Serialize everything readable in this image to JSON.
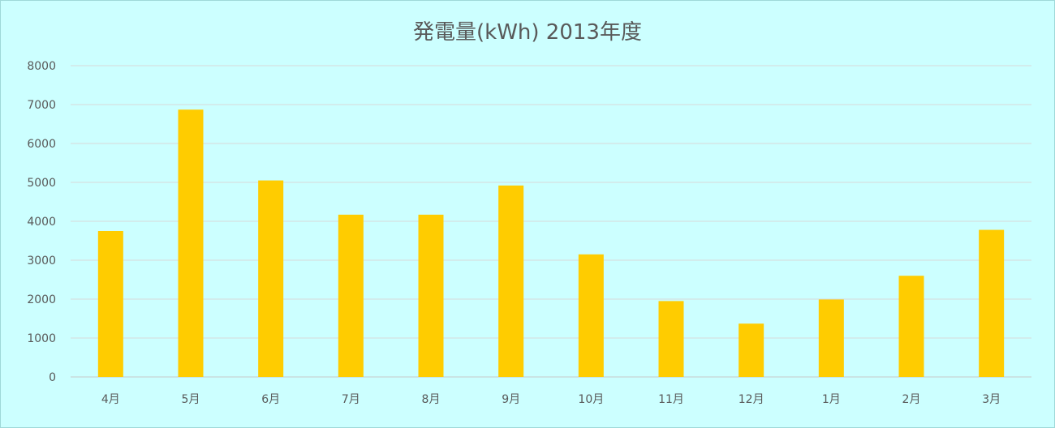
{
  "chart_data": {
    "type": "bar",
    "title": "発電量(kWh) 2013年度",
    "xlabel": "",
    "ylabel": "",
    "categories": [
      "4月",
      "5月",
      "6月",
      "7月",
      "8月",
      "9月",
      "10月",
      "11月",
      "12月",
      "1月",
      "2月",
      "3月"
    ],
    "values": [
      3750,
      6870,
      5050,
      4170,
      4170,
      4920,
      3150,
      1950,
      1370,
      1990,
      2600,
      3780
    ],
    "ylim": [
      0,
      8000
    ],
    "yticks": [
      0,
      1000,
      2000,
      3000,
      4000,
      5000,
      6000,
      7000,
      8000
    ],
    "grid": true,
    "legend": "none",
    "colors": {
      "bar": "#ffcc00",
      "background": "#ccffff",
      "gridline": "#d9d9d9",
      "text": "#595959"
    }
  }
}
